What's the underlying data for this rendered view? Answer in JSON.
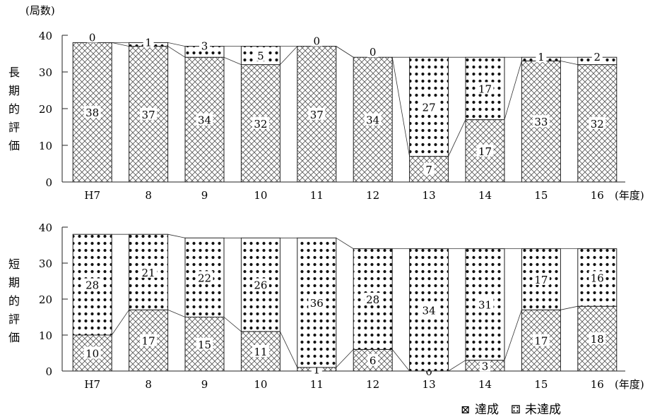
{
  "chart_data": [
    {
      "type": "bar",
      "stacked": true,
      "unit_label": "(局数)",
      "ylabel": "長期的評価",
      "xlabel": "(年度)",
      "categories": [
        "H7",
        "8",
        "9",
        "10",
        "11",
        "12",
        "13",
        "14",
        "15",
        "16"
      ],
      "ylim": [
        0,
        40
      ],
      "yticks": [
        0,
        10,
        20,
        30,
        40
      ],
      "series": [
        {
          "name": "達成",
          "values": [
            38,
            37,
            34,
            32,
            37,
            34,
            7,
            17,
            33,
            32
          ]
        },
        {
          "name": "未達成",
          "values": [
            0,
            1,
            3,
            5,
            0,
            0,
            27,
            17,
            1,
            2
          ]
        }
      ]
    },
    {
      "type": "bar",
      "stacked": true,
      "ylabel": "短期的評価",
      "xlabel": "(年度)",
      "categories": [
        "H7",
        "8",
        "9",
        "10",
        "11",
        "12",
        "13",
        "14",
        "15",
        "16"
      ],
      "ylim": [
        0,
        40
      ],
      "yticks": [
        0,
        10,
        20,
        30,
        40
      ],
      "series": [
        {
          "name": "達成",
          "values": [
            10,
            17,
            15,
            11,
            1,
            6,
            0,
            3,
            17,
            18
          ]
        },
        {
          "name": "未達成",
          "values": [
            28,
            21,
            22,
            26,
            36,
            28,
            34,
            31,
            17,
            16
          ]
        }
      ]
    }
  ],
  "legend": {
    "placement": "bottom-right",
    "items": [
      {
        "symbol": "⊠",
        "label": "達成"
      },
      {
        "symbol": "⚃",
        "label": "未達成"
      }
    ]
  }
}
